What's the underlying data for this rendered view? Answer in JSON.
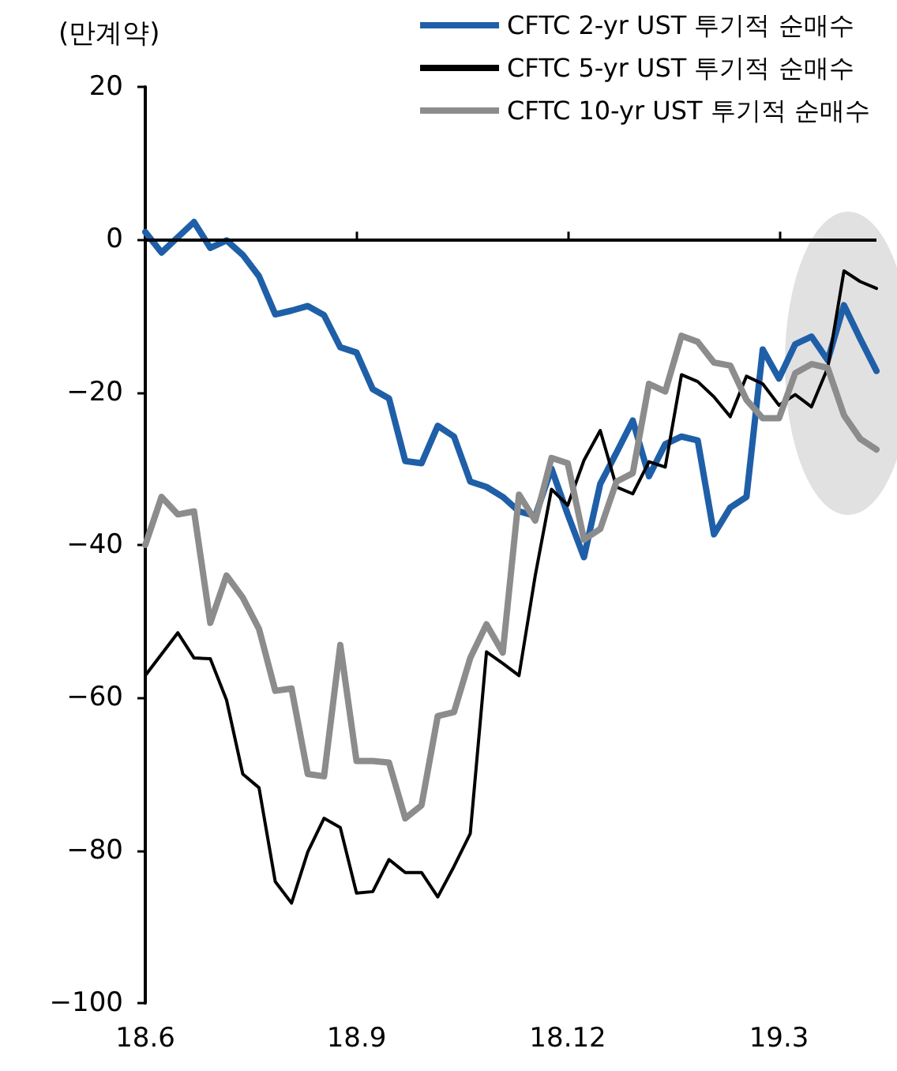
{
  "chart_data": {
    "type": "line",
    "ylabel": "(만계약)",
    "categories": [
      "18.6",
      null,
      null,
      null,
      null,
      null,
      null,
      null,
      null,
      null,
      null,
      null,
      null,
      "18.9",
      null,
      null,
      null,
      null,
      null,
      null,
      null,
      null,
      null,
      null,
      null,
      null,
      "18.12",
      null,
      null,
      null,
      null,
      null,
      null,
      null,
      null,
      null,
      null,
      null,
      null,
      "19.3",
      null,
      null,
      null,
      null,
      null,
      null
    ],
    "series": [
      {
        "name": "CFTC 2-yr UST 투기적 순매수",
        "color": "#1f5fa8",
        "values": [
          1,
          -1.7,
          0.3,
          2.3,
          -1.1,
          -0.1,
          -2,
          -4.8,
          -9.8,
          -9.3,
          -8.7,
          -9.9,
          -14.1,
          -14.8,
          -19.6,
          -20.8,
          -29,
          -29.3,
          -24.4,
          -25.8,
          -31.7,
          -32.4,
          -33.7,
          -35.6,
          -36.2,
          -30,
          -36,
          -41.6,
          -32,
          -27.9,
          -23.7,
          -31,
          -26.8,
          -25.8,
          -26.3,
          -38.6,
          -35.1,
          -33.7,
          -14.4,
          -18.2,
          -13.7,
          -12.7,
          -15.8,
          -8.6,
          -13,
          -17.2
        ]
      },
      {
        "name": "CFTC 5-yr UST 투기적 순매수",
        "color": "#000000",
        "values": [
          -57.1,
          -54.3,
          -51.5,
          -54.8,
          -54.9,
          -60.3,
          -70,
          -71.8,
          -84.1,
          -86.9,
          -80.2,
          -75.8,
          -77,
          -85.6,
          -85.4,
          -81.2,
          -82.9,
          -82.9,
          -86.1,
          -82.1,
          -77.8,
          -54,
          -55.5,
          -57.1,
          -44,
          -32.7,
          -34.8,
          -28.9,
          -25,
          -32.4,
          -33.3,
          -29.1,
          -29.8,
          -17.7,
          -18.6,
          -20.6,
          -23.2,
          -17.9,
          -18.9,
          -21.7,
          -20.3,
          -21.9,
          -16.8,
          -4.1,
          -5.5,
          -6.4
        ]
      },
      {
        "name": "CFTC 10-yr UST 투기적 순매수",
        "color": "#8c8c8c",
        "values": [
          -40,
          -33.7,
          -36,
          -35.6,
          -50.2,
          -44,
          -46.9,
          -51,
          -59.1,
          -58.8,
          -70,
          -70.3,
          -53.1,
          -68.3,
          -68.3,
          -68.5,
          -75.8,
          -74.1,
          -62.4,
          -61.9,
          -54.8,
          -50.4,
          -54.1,
          -33.4,
          -36.8,
          -28.6,
          -29.3,
          -39.3,
          -37.9,
          -31.7,
          -30.6,
          -18.9,
          -19.9,
          -12.6,
          -13.4,
          -16.1,
          -16.5,
          -21,
          -23.4,
          -23.4,
          -17.5,
          -16.3,
          -16.8,
          -23,
          -26.1,
          -27.5
        ]
      }
    ],
    "ylim": [
      -100,
      20
    ],
    "yticks": [
      -100,
      -80,
      -60,
      -40,
      -20,
      0,
      20
    ],
    "ref_lines": [
      {
        "axis": "y",
        "value": 0,
        "color": "#000000"
      }
    ],
    "grid": false,
    "legend": "top right",
    "marker": "none",
    "line_style": "solid"
  }
}
